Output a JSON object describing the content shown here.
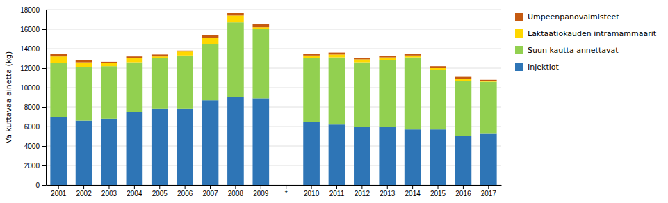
{
  "chart_data": {
    "type": "bar",
    "stacked": true,
    "ylabel": "Vaikuttavaa ainetta (kg)",
    "categories": [
      "2001",
      "2002",
      "2003",
      "2004",
      "2005",
      "2006",
      "2007",
      "2008",
      "2009",
      "*",
      "2010",
      "2011",
      "2012",
      "2013",
      "2014",
      "2015",
      "2016",
      "2017"
    ],
    "series": [
      {
        "name": "Injektiot",
        "color": "#2E75B6",
        "values": [
          7000,
          6600,
          6800,
          7500,
          7800,
          7800,
          8700,
          9000,
          8900,
          0,
          6500,
          6200,
          6000,
          6000,
          5700,
          5700,
          5000,
          5250
        ]
      },
      {
        "name": "Suun kautta annettavat",
        "color": "#92D050",
        "values": [
          5500,
          5500,
          5400,
          5100,
          5200,
          5500,
          5750,
          7700,
          7100,
          0,
          6500,
          6900,
          6600,
          6800,
          7400,
          6100,
          5700,
          5350
        ]
      },
      {
        "name": "Laktaatiokauden intramammaarit",
        "color": "#FFD700",
        "values": [
          700,
          500,
          350,
          400,
          200,
          400,
          650,
          700,
          200,
          0,
          300,
          300,
          300,
          300,
          200,
          200,
          200,
          100
        ]
      },
      {
        "name": "Umpeenpanovalmisteet",
        "color": "#C55A11",
        "values": [
          300,
          250,
          100,
          200,
          200,
          100,
          300,
          300,
          300,
          0,
          150,
          200,
          150,
          150,
          200,
          200,
          200,
          100
        ]
      }
    ],
    "ylim": [
      0,
      18000
    ],
    "yticks": [
      0,
      2000,
      4000,
      6000,
      8000,
      10000,
      12000,
      14000,
      16000,
      18000
    ],
    "grid": true,
    "legend": "right"
  }
}
